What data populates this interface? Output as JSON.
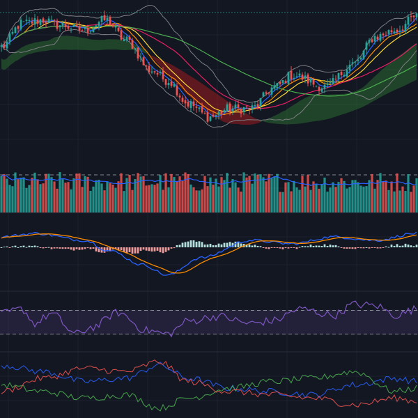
{
  "chart_data": [
    {
      "type": "candlestick",
      "panel": "price",
      "ylim": [
        0,
        100
      ],
      "colors": {
        "up": "#26a69a",
        "down": "#ef5350"
      },
      "overlays": [
        {
          "kind": "bollinger",
          "color": "#7f7f85"
        },
        {
          "kind": "moving_average",
          "color": "#fb8c00"
        },
        {
          "kind": "moving_average",
          "color": "#fdd835"
        },
        {
          "kind": "moving_average",
          "color": "#e91e63"
        },
        {
          "kind": "moving_average",
          "color": "#4caf50"
        },
        {
          "kind": "moving_average",
          "color": "#2962ff"
        },
        {
          "kind": "ichimoku_cloud",
          "bull_color": "#2e7d32",
          "bear_color": "#b71c1c"
        }
      ],
      "series": [
        {
          "name": "close_path_keypoints",
          "x": [
            0,
            5,
            10,
            14,
            20,
            25,
            30,
            36,
            40,
            45,
            50,
            55,
            60,
            66,
            70,
            78,
            85,
            90,
            95,
            100
          ],
          "values": [
            72,
            86,
            88,
            85,
            82,
            88,
            76,
            58,
            52,
            38,
            30,
            35,
            35,
            48,
            55,
            48,
            62,
            78,
            82,
            90
          ]
        }
      ]
    },
    {
      "type": "bar",
      "panel": "volume",
      "ylim": [
        0,
        100
      ],
      "colors": {
        "up": "#26a69a",
        "down": "#ef5350",
        "ma": "#2962ff",
        "ref": "#d1d4dc"
      }
    },
    {
      "type": "line",
      "panel": "macd",
      "ylim": [
        -100,
        100
      ],
      "colors": {
        "macd": "#2962ff",
        "signal": "#fb8c00",
        "hist_pos": "#b2dfdb",
        "hist_neg": "#ef9a9a"
      },
      "series": [
        {
          "name": "macd_keypoints",
          "x": [
            0,
            8,
            20,
            26,
            34,
            40,
            48,
            60,
            70,
            80,
            90,
            100
          ],
          "values": [
            30,
            40,
            20,
            -10,
            -50,
            -80,
            -30,
            20,
            10,
            30,
            20,
            40
          ]
        }
      ]
    },
    {
      "type": "line",
      "panel": "rsi",
      "ylim": [
        0,
        100
      ],
      "bands": [
        30,
        70
      ],
      "colors": {
        "line": "#7e57c2",
        "band_fill": "rgba(126,87,194,0.15)",
        "ref": "#d1d4dc"
      },
      "series": [
        {
          "name": "rsi_keypoints",
          "x": [
            0,
            5,
            8,
            12,
            18,
            22,
            28,
            35,
            40,
            45,
            52,
            60,
            65,
            72,
            80,
            85,
            90,
            95,
            100
          ],
          "values": [
            64,
            72,
            48,
            64,
            30,
            42,
            66,
            36,
            30,
            52,
            60,
            48,
            52,
            72,
            62,
            80,
            78,
            62,
            72
          ]
        }
      ]
    },
    {
      "type": "line",
      "panel": "dmi",
      "ylim": [
        0,
        100
      ],
      "colors": {
        "adx": "#2962ff",
        "plus_di": "#4caf50",
        "minus_di": "#ef5350"
      },
      "series": [
        {
          "name": "adx_keypoints",
          "x": [
            0,
            10,
            20,
            30,
            38,
            45,
            55,
            65,
            75,
            85,
            95,
            100
          ],
          "values": [
            80,
            70,
            55,
            60,
            80,
            60,
            45,
            40,
            35,
            50,
            60,
            55
          ]
        },
        {
          "name": "plus_di_keypoints",
          "x": [
            0,
            10,
            20,
            30,
            38,
            45,
            55,
            65,
            75,
            85,
            95,
            100
          ],
          "values": [
            50,
            40,
            30,
            35,
            15,
            30,
            45,
            55,
            60,
            70,
            40,
            45
          ]
        },
        {
          "name": "minus_di_keypoints",
          "x": [
            0,
            10,
            20,
            30,
            38,
            45,
            55,
            65,
            75,
            85,
            95,
            100
          ],
          "values": [
            40,
            60,
            75,
            70,
            85,
            55,
            40,
            35,
            30,
            20,
            30,
            25
          ]
        }
      ]
    }
  ]
}
